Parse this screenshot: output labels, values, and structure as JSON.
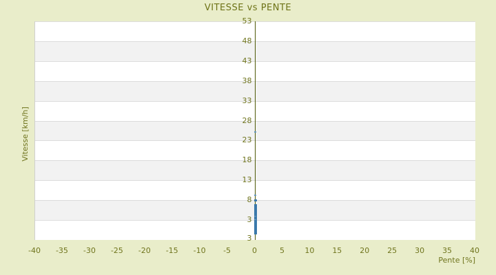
{
  "title": "VITESSE vs PENTE",
  "colors": {
    "page_background": "#e9edca",
    "title_text": "#6e7317",
    "tick_text": "#6f741d",
    "axis_line": "#4e5907",
    "band_white": "#ffffff",
    "band_gray": "#f2f2f2",
    "gridline": "#dcdcdc",
    "marker_blue": "#3b79ab",
    "marker_dash_blue": "#699cc2"
  },
  "chart_data": {
    "type": "scatter",
    "title": "VITESSE vs PENTE",
    "xlabel": "Pente [%]",
    "ylabel": "Vitesse [km/h]",
    "xlim": [
      -40,
      40
    ],
    "ylim": [
      -2,
      53
    ],
    "x_tick_values": [
      -40,
      -35,
      -30,
      -25,
      -20,
      -15,
      -10,
      -5,
      0,
      5,
      10,
      15,
      20,
      25,
      30,
      35,
      40
    ],
    "y_tick_values": [
      53,
      48,
      43,
      38,
      33,
      28,
      23,
      18,
      13,
      8,
      3
    ],
    "y_bottom_edge_label": "3",
    "grid": "horizontal-bands-alternating",
    "legend": "none",
    "points": [
      {
        "x": 0,
        "y": 25.2,
        "marker": "dash"
      },
      {
        "x": 0,
        "y": 9.2,
        "marker": "dash"
      },
      {
        "x": 0,
        "y": 8.0,
        "marker": "square"
      },
      {
        "x": 0,
        "y": 6.7,
        "marker": "square"
      },
      {
        "x": 0,
        "y": 6.3,
        "marker": "square"
      },
      {
        "x": 0,
        "y": 5.9,
        "marker": "square"
      },
      {
        "x": 0,
        "y": 5.5,
        "marker": "square"
      },
      {
        "x": 0,
        "y": 5.1,
        "marker": "square"
      },
      {
        "x": 0,
        "y": 4.8,
        "marker": "square"
      },
      {
        "x": 0,
        "y": 4.5,
        "marker": "square"
      },
      {
        "x": 0,
        "y": 4.2,
        "marker": "square"
      },
      {
        "x": 0,
        "y": 3.9,
        "marker": "dash"
      },
      {
        "x": 0,
        "y": 3.6,
        "marker": "square"
      },
      {
        "x": 0,
        "y": 3.3,
        "marker": "square"
      },
      {
        "x": 0,
        "y": 3.0,
        "marker": "dash"
      },
      {
        "x": 0,
        "y": 2.7,
        "marker": "square"
      },
      {
        "x": 0,
        "y": 2.4,
        "marker": "square"
      },
      {
        "x": 0,
        "y": 2.1,
        "marker": "square"
      },
      {
        "x": 0,
        "y": 1.8,
        "marker": "square"
      },
      {
        "x": 0,
        "y": 1.5,
        "marker": "square"
      },
      {
        "x": 0,
        "y": 1.2,
        "marker": "square"
      },
      {
        "x": 0,
        "y": 0.9,
        "marker": "square"
      },
      {
        "x": 0,
        "y": 0.6,
        "marker": "square"
      },
      {
        "x": 0,
        "y": 0.3,
        "marker": "square"
      },
      {
        "x": 0,
        "y": 0.0,
        "marker": "square"
      },
      {
        "x": 0,
        "y": -0.3,
        "marker": "square"
      }
    ]
  }
}
